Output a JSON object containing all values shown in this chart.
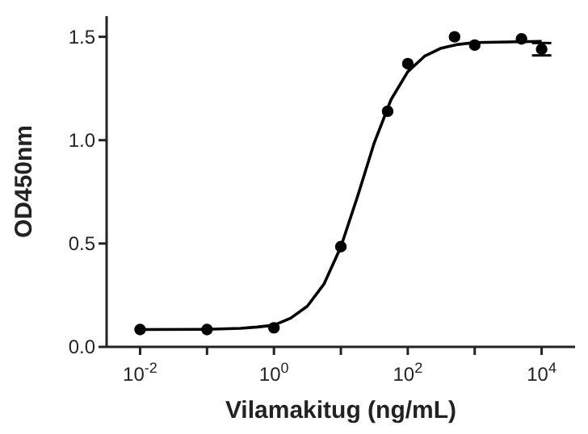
{
  "chart_data": {
    "type": "scatter",
    "xlabel": "Vilamakitug (ng/mL)",
    "ylabel": "OD450nm",
    "log": "x",
    "marker": "circle",
    "grid": false,
    "legend": false,
    "xlim": [
      0.00316,
      31600
    ],
    "xticks": [
      {
        "value": 0.01,
        "label": "10$^{-2}$"
      },
      {
        "value": 0.1,
        "label": null
      },
      {
        "value": 1,
        "label": "10$^{0}$"
      },
      {
        "value": 10,
        "label": null
      },
      {
        "value": 100,
        "label": "10$^{2}$"
      },
      {
        "value": 1000,
        "label": null
      },
      {
        "value": 10000,
        "label": "10$^{4}$"
      }
    ],
    "ylim": [
      0,
      1.6
    ],
    "yticks": [
      {
        "value": 0,
        "label": "0.0"
      },
      {
        "value": 0.5,
        "label": "0.5"
      },
      {
        "value": 1,
        "label": "1.0"
      },
      {
        "value": 1.5,
        "label": "1.5"
      }
    ],
    "series": [
      {
        "color": "#000000",
        "x": [
          0.01,
          0.1,
          1,
          10,
          50,
          100,
          500,
          1000,
          5000,
          10000
        ],
        "values": [
          0.084,
          0.084,
          0.092,
          0.485,
          1.14,
          1.37,
          1.5,
          1.46,
          1.49,
          1.44
        ],
        "errors": [
          null,
          null,
          null,
          null,
          null,
          null,
          null,
          null,
          null,
          0.03
        ]
      },
      {
        "type": "line",
        "color": "#000000",
        "line_style": "solid",
        "marker": "none",
        "x": [
          0.01,
          0.1,
          0.316,
          0.562,
          1,
          1.78,
          3.16,
          5.62,
          10,
          17.8,
          31.6,
          56.2,
          100,
          178,
          316,
          562,
          1000,
          10000
        ],
        "values": [
          0.084,
          0.085,
          0.09,
          0.096,
          0.105,
          0.139,
          0.197,
          0.305,
          0.484,
          0.729,
          0.988,
          1.196,
          1.331,
          1.406,
          1.445,
          1.463,
          1.472,
          1.478
        ]
      }
    ]
  }
}
